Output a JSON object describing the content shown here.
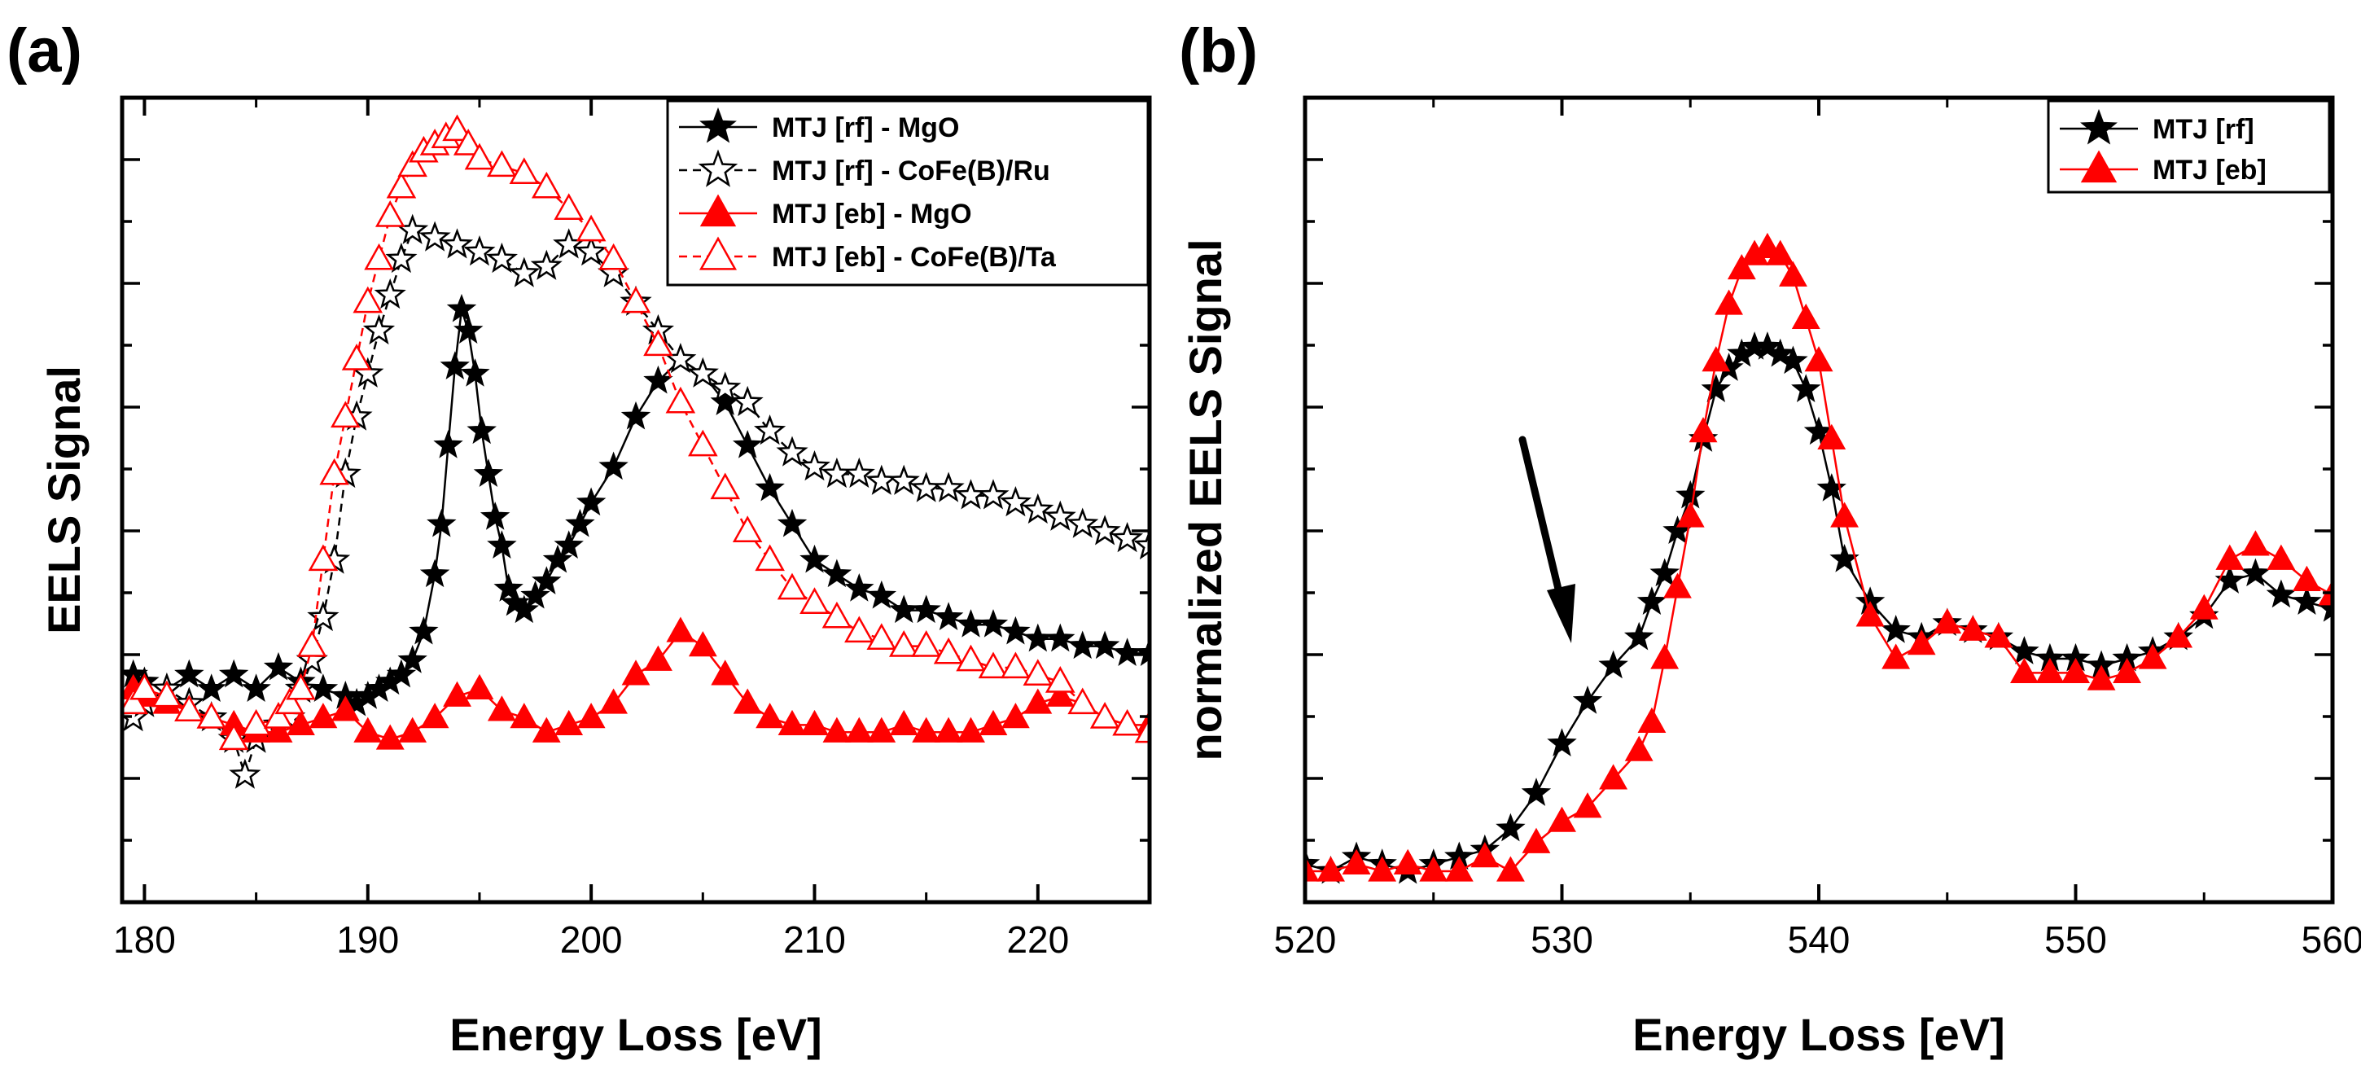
{
  "chart_data": [
    {
      "id": "a",
      "type": "line",
      "panel_label": "(a)",
      "xlabel": "Energy Loss [eV]",
      "ylabel": "EELS Signal",
      "xlim": [
        179,
        225
      ],
      "ylim": [
        0,
        100
      ],
      "xticks": [
        180,
        190,
        200,
        210,
        220
      ],
      "y_tick_labels_shown": false,
      "legend_position": "top-right",
      "series": [
        {
          "name": "MTJ [rf] - MgO",
          "color": "#000000",
          "marker": "star",
          "filled": true,
          "x": [
            179.5,
            180,
            181,
            182,
            183,
            184,
            185,
            186,
            187,
            188,
            189,
            189.5,
            190,
            190.5,
            191,
            191.5,
            192,
            192.5,
            193,
            193.3,
            193.6,
            193.9,
            194.2,
            194.5,
            194.8,
            195.1,
            195.4,
            195.7,
            196,
            196.3,
            196.6,
            197,
            197.5,
            198,
            198.5,
            199,
            199.5,
            200,
            201,
            202,
            203,
            204,
            205,
            206,
            207,
            208,
            209,
            210,
            211,
            212,
            213,
            214,
            215,
            216,
            217,
            218,
            219,
            220,
            221,
            222,
            223,
            224,
            225
          ],
          "y": [
            24,
            23,
            22,
            24,
            22,
            24,
            22,
            25,
            23,
            22,
            21,
            20,
            21,
            22,
            23,
            24,
            26,
            30,
            38,
            45,
            56,
            67,
            75,
            72,
            66,
            58,
            52,
            46,
            42,
            36,
            34,
            33,
            35,
            37,
            40,
            42,
            45,
            48,
            53,
            60,
            65,
            68,
            66,
            62,
            56,
            50,
            45,
            40,
            38,
            36,
            35,
            33,
            33,
            32,
            31,
            31,
            30,
            29,
            29,
            28,
            28,
            27,
            27
          ]
        },
        {
          "name": "MTJ [rf] - CoFe(B)/Ru",
          "color": "#000000",
          "marker": "star",
          "filled": false,
          "dashed": true,
          "x": [
            179.5,
            180,
            181,
            182,
            183,
            184,
            184.5,
            185,
            186,
            186.5,
            187,
            187.5,
            188,
            188.5,
            189,
            189.5,
            190,
            190.5,
            191,
            191.5,
            192,
            193,
            194,
            195,
            196,
            197,
            198,
            199,
            200,
            201,
            202,
            203,
            204,
            205,
            206,
            207,
            208,
            209,
            210,
            211,
            212,
            213,
            214,
            215,
            216,
            217,
            218,
            219,
            220,
            221,
            222,
            223,
            224,
            225
          ],
          "y": [
            18,
            20,
            22,
            20,
            18,
            15,
            10,
            15,
            17,
            18,
            22,
            26,
            32,
            40,
            52,
            60,
            66,
            72,
            77,
            82,
            86,
            85,
            84,
            83,
            82,
            80,
            81,
            84,
            83,
            80,
            76,
            72,
            68,
            66,
            64,
            62,
            58,
            55,
            53,
            52,
            52,
            51,
            51,
            50,
            50,
            49,
            49,
            48,
            47,
            46,
            45,
            44,
            43,
            42
          ]
        },
        {
          "name": "MTJ [eb] - MgO",
          "color": "#ff0000",
          "marker": "triangle",
          "filled": true,
          "x": [
            179.5,
            180,
            181,
            182,
            183,
            184,
            185,
            186,
            187,
            188,
            189,
            190,
            191,
            192,
            193,
            194,
            195,
            196,
            197,
            198,
            199,
            200,
            201,
            202,
            203,
            204,
            205,
            206,
            207,
            208,
            209,
            210,
            211,
            212,
            213,
            214,
            215,
            216,
            217,
            218,
            219,
            220,
            221,
            222,
            223,
            224,
            225
          ],
          "y": [
            22,
            21,
            20,
            19,
            18,
            17,
            16,
            16,
            17,
            18,
            19,
            16,
            15,
            16,
            18,
            21,
            22,
            19,
            18,
            16,
            17,
            18,
            20,
            24,
            26,
            30,
            28,
            24,
            20,
            18,
            17,
            17,
            16,
            16,
            16,
            17,
            16,
            16,
            16,
            17,
            18,
            20,
            21,
            20,
            18,
            17,
            17
          ]
        },
        {
          "name": "MTJ [eb] - CoFe(B)/Ta",
          "color": "#ff0000",
          "marker": "triangle",
          "filled": false,
          "dashed": true,
          "x": [
            179.5,
            180,
            181,
            182,
            183,
            184,
            185,
            186,
            186.5,
            187,
            187.5,
            188,
            188.5,
            189,
            189.5,
            190,
            190.5,
            191,
            191.5,
            192,
            192.5,
            193,
            193.5,
            194,
            194.5,
            195,
            196,
            197,
            198,
            199,
            200,
            201,
            202,
            203,
            204,
            205,
            206,
            207,
            208,
            209,
            210,
            211,
            212,
            213,
            214,
            215,
            216,
            217,
            218,
            219,
            220,
            221,
            222,
            223,
            224,
            225
          ],
          "y": [
            20,
            22,
            21,
            19,
            18,
            15,
            17,
            18,
            20,
            22,
            28,
            40,
            52,
            60,
            68,
            76,
            82,
            88,
            92,
            95,
            97,
            98,
            99,
            100,
            98,
            96,
            95,
            94,
            92,
            89,
            86,
            82,
            76,
            70,
            62,
            56,
            50,
            44,
            40,
            36,
            34,
            32,
            30,
            29,
            28,
            28,
            27,
            26,
            25,
            25,
            24,
            23,
            20,
            18,
            17,
            16
          ]
        }
      ]
    },
    {
      "id": "b",
      "type": "line",
      "panel_label": "(b)",
      "xlabel": "Energy Loss [eV]",
      "ylabel": "normalized EELS Signal",
      "xlim": [
        520,
        560
      ],
      "ylim": [
        0,
        100
      ],
      "xticks": [
        520,
        530,
        540,
        550,
        560
      ],
      "y_tick_labels_shown": false,
      "legend_position": "top-right",
      "annotation": "arrow pointing to pre-edge shoulder near 530 eV",
      "series": [
        {
          "name": "MTJ [rf]",
          "color": "#000000",
          "marker": "star",
          "filled": true,
          "x": [
            520,
            521,
            522,
            523,
            524,
            525,
            526,
            527,
            528,
            529,
            530,
            531,
            532,
            533,
            533.5,
            534,
            534.5,
            535,
            535.5,
            536,
            536.5,
            537,
            537.5,
            538,
            538.5,
            539,
            539.5,
            540,
            540.5,
            541,
            542,
            543,
            544,
            545,
            546,
            547,
            548,
            549,
            550,
            551,
            552,
            553,
            554,
            555,
            556,
            557,
            558,
            559,
            560
          ],
          "y": [
            1,
            0,
            2,
            1,
            0,
            1,
            2,
            3,
            6,
            11,
            18,
            24,
            29,
            33,
            38,
            42,
            48,
            53,
            61,
            68,
            71,
            73,
            74,
            74,
            73,
            72,
            68,
            62,
            54,
            44,
            38,
            34,
            33,
            35,
            34,
            33,
            31,
            30,
            30,
            29,
            30,
            31,
            33,
            36,
            41,
            42,
            39,
            38,
            37
          ]
        },
        {
          "name": "MTJ [eb]",
          "color": "#ff0000",
          "marker": "triangle",
          "filled": true,
          "x": [
            520,
            521,
            522,
            523,
            524,
            525,
            526,
            527,
            528,
            529,
            530,
            531,
            532,
            533,
            533.5,
            534,
            534.5,
            535,
            535.5,
            536,
            536.5,
            537,
            537.5,
            538,
            538.5,
            539,
            539.5,
            540,
            540.5,
            541,
            542,
            543,
            544,
            545,
            546,
            547,
            548,
            549,
            550,
            551,
            552,
            553,
            554,
            555,
            556,
            557,
            558,
            559,
            560
          ],
          "y": [
            0,
            0,
            1,
            0,
            1,
            0,
            0,
            2,
            0,
            4,
            7,
            9,
            13,
            17,
            21,
            30,
            40,
            50,
            62,
            72,
            80,
            85,
            87,
            88,
            87,
            84,
            78,
            72,
            61,
            50,
            36,
            30,
            32,
            35,
            34,
            33,
            28,
            28,
            28,
            27,
            28,
            30,
            33,
            37,
            44,
            46,
            44,
            41,
            39
          ]
        }
      ]
    }
  ]
}
